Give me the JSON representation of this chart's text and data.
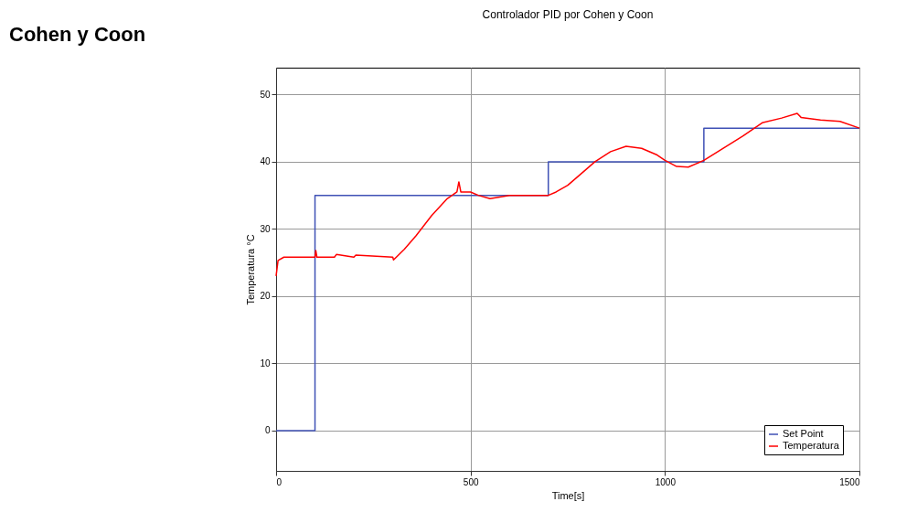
{
  "chart_data": {
    "type": "line",
    "title": "Controlador PID por Cohen y Coon",
    "xlabel": "Time[s]",
    "ylabel": "Temperatura °C",
    "annotations": [
      "Cohen y Coon"
    ],
    "xlim": [
      0,
      1500
    ],
    "xticks": [
      0,
      500,
      1000,
      1500
    ],
    "ylim": [
      -6,
      54
    ],
    "yticks": [
      0,
      10,
      20,
      30,
      40,
      50
    ],
    "grid": true,
    "legend": "bottom right",
    "series": [
      {
        "name": "Set Point",
        "color": "#3f51b5",
        "x": [
          0,
          100,
          100,
          700,
          700,
          1100,
          1100,
          1500
        ],
        "values": [
          0,
          0,
          35,
          35,
          40,
          40,
          45,
          45
        ]
      },
      {
        "name": "Temperatura",
        "color": "#ff0000",
        "x": [
          0,
          5,
          20,
          100,
          102,
          105,
          150,
          155,
          200,
          205,
          300,
          302,
          330,
          360,
          400,
          440,
          465,
          470,
          475,
          500,
          520,
          550,
          600,
          650,
          700,
          720,
          750,
          780,
          820,
          860,
          900,
          940,
          980,
          1000,
          1030,
          1060,
          1100,
          1150,
          1200,
          1250,
          1300,
          1340,
          1350,
          1400,
          1450,
          1500
        ],
        "values": [
          23,
          25.3,
          25.8,
          25.8,
          26.8,
          25.8,
          25.8,
          26.2,
          25.8,
          26.1,
          25.8,
          25.4,
          27,
          29,
          32,
          34.5,
          35.5,
          37,
          35.5,
          35.5,
          35,
          34.5,
          35,
          35,
          35,
          35.5,
          36.5,
          38,
          40,
          41.5,
          42.3,
          42,
          41,
          40.2,
          39.3,
          39.2,
          40.2,
          42,
          43.8,
          45.8,
          46.5,
          47.2,
          46.6,
          46.2,
          46,
          45
        ]
      }
    ]
  }
}
